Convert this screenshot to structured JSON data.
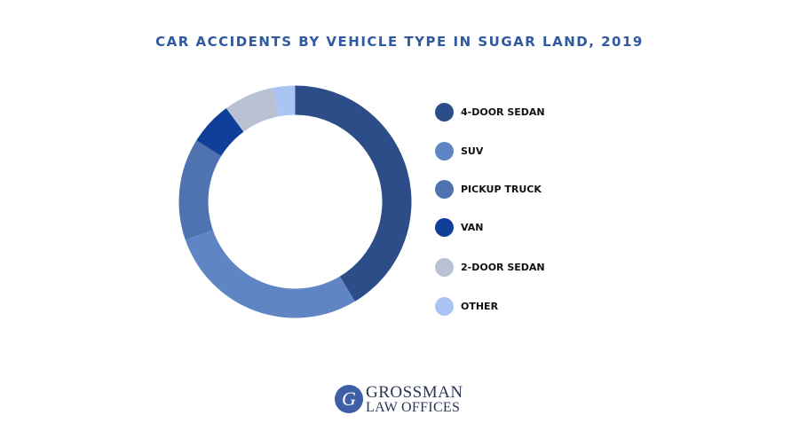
{
  "chart_data": {
    "type": "pie",
    "style": "donut",
    "title": "CAR ACCIDENTS BY VEHICLE TYPE IN SUGAR LAND, 2019",
    "categories": [
      "4-DOOR SEDAN",
      "SUV",
      "PICKUP TRUCK",
      "VAN",
      "2-DOOR SEDAN",
      "OTHER"
    ],
    "values": [
      41,
      28,
      14,
      6,
      7,
      3
    ],
    "colors": [
      "#2c4d87",
      "#6085c4",
      "#4f72b0",
      "#103f99",
      "#b8c2d2",
      "#a9c4f5"
    ],
    "legend_position": "right"
  },
  "brand": {
    "name_line1": "GROSSMAN",
    "name_line2": "LAW OFFICES",
    "logo_letter": "G"
  }
}
